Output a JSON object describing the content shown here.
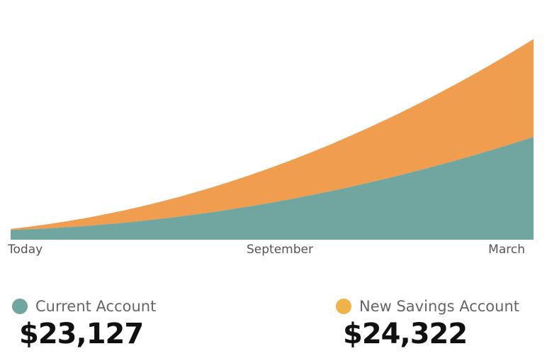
{
  "chart_data": {
    "type": "area",
    "stacked": true,
    "x": [
      "Today",
      "September",
      "March"
    ],
    "series": [
      {
        "name": "Current Account",
        "color": "#71a59f",
        "values": [
          1.0,
          3.8,
          10.5
        ]
      },
      {
        "name": "New Savings Account",
        "color": "#f09d50",
        "values": [
          0.1,
          3.6,
          10.0
        ]
      }
    ],
    "grid": false,
    "title": "",
    "xlabel": "",
    "ylabel": ""
  },
  "legend": {
    "items": [
      {
        "label": "Current Account",
        "value": "$23,127",
        "dot_color": "#71a59f"
      },
      {
        "label": "New Savings Account",
        "value": "$24,322",
        "dot_color": "#f0b24a"
      }
    ]
  }
}
